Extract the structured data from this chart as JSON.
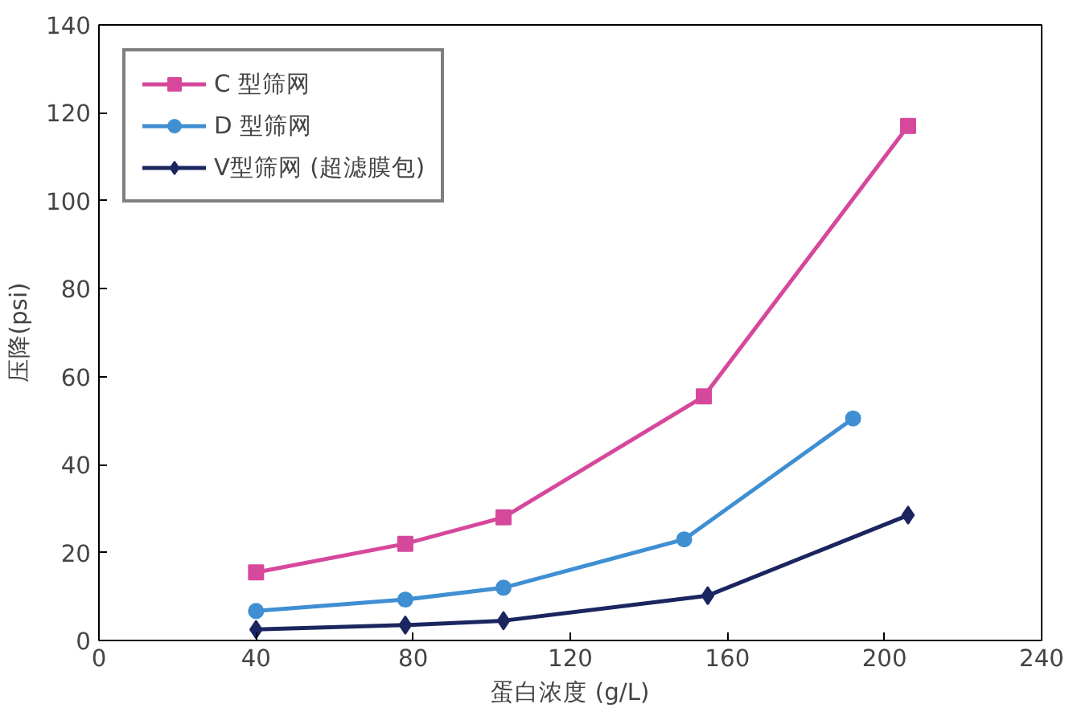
{
  "chart_data": {
    "type": "line",
    "xlabel": "蛋白浓度 (g/L)",
    "ylabel": "压降(psi)",
    "xlim": [
      0,
      240
    ],
    "xticks": [
      0,
      40,
      80,
      120,
      160,
      200,
      240
    ],
    "ylim": [
      0,
      140
    ],
    "yticks": [
      0,
      20,
      40,
      60,
      80,
      100,
      120,
      140
    ],
    "grid": false,
    "legend": "top left",
    "series": [
      {
        "name": "C 型筛网",
        "color": "#d6489c",
        "marker": "square",
        "x": [
          40,
          78,
          103,
          154,
          206
        ],
        "values": [
          15.5,
          22,
          28,
          55.5,
          117
        ]
      },
      {
        "name": "D 型筛网",
        "color": "#3f8fd2",
        "marker": "circle",
        "x": [
          40,
          78,
          103,
          149,
          192
        ],
        "values": [
          6.7,
          9.3,
          12,
          23,
          50.5
        ]
      },
      {
        "name": "V型筛网 (超滤膜包)",
        "color": "#1b2660",
        "marker": "diamond",
        "x": [
          40,
          78,
          103,
          155,
          206
        ],
        "values": [
          2.5,
          3.5,
          4.5,
          10.2,
          28.5
        ]
      }
    ]
  }
}
